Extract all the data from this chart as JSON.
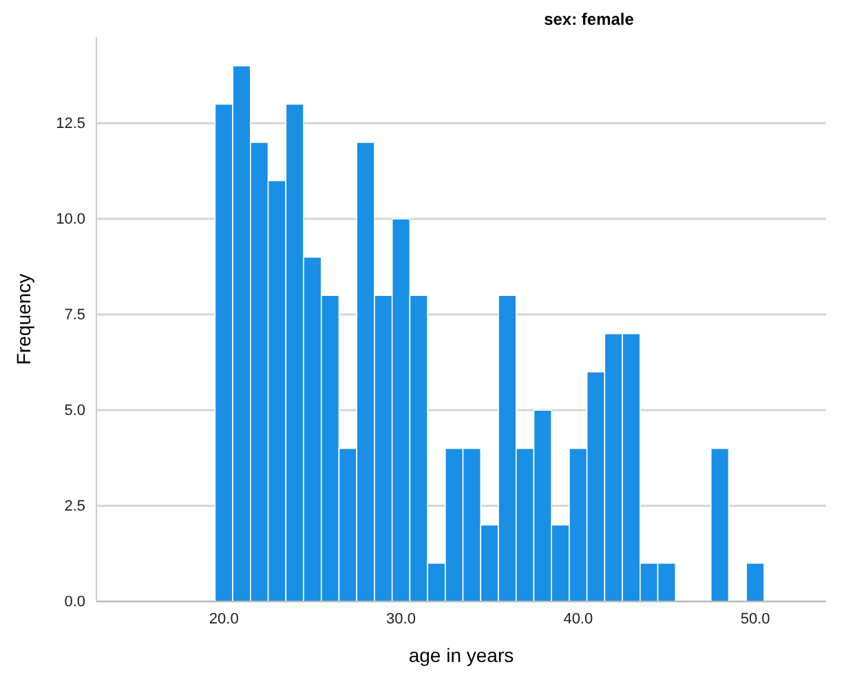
{
  "chart_data": {
    "type": "histogram",
    "title": "sex: female",
    "xlabel": "age in years",
    "ylabel": "Frequency",
    "bins": [
      19.5,
      20.5,
      21.5,
      22.5,
      23.5,
      24.5,
      25.5,
      26.5,
      27.5,
      28.5,
      29.5,
      30.5,
      31.5,
      32.5,
      33.5,
      34.5,
      35.5,
      36.5,
      37.5,
      38.5,
      39.5,
      40.5,
      41.5,
      42.5,
      43.5,
      44.5,
      45.5,
      46.5,
      47.5,
      48.5,
      49.5,
      50.5
    ],
    "values": [
      13,
      14,
      12,
      11,
      13,
      9,
      8,
      4,
      12,
      8,
      10,
      8,
      1,
      4,
      4,
      2,
      8,
      4,
      5,
      2,
      4,
      6,
      7,
      7,
      1,
      1,
      0,
      0,
      4,
      0,
      1
    ],
    "color": "#1a8fe6",
    "xlim": [
      12.8,
      54
    ],
    "xticks": [
      {
        "value": 20,
        "label": "20.0"
      },
      {
        "value": 30,
        "label": "30.0"
      },
      {
        "value": 40,
        "label": "40.0"
      },
      {
        "value": 50,
        "label": "50.0"
      }
    ],
    "ylim": [
      0,
      14.75
    ],
    "yticks": [
      {
        "value": 0,
        "label": "0.0"
      },
      {
        "value": 2.5,
        "label": "2.5"
      },
      {
        "value": 5,
        "label": "5.0"
      },
      {
        "value": 7.5,
        "label": "7.5"
      },
      {
        "value": 10,
        "label": "10.0"
      },
      {
        "value": 12.5,
        "label": "12.5"
      }
    ],
    "grid": "y"
  }
}
